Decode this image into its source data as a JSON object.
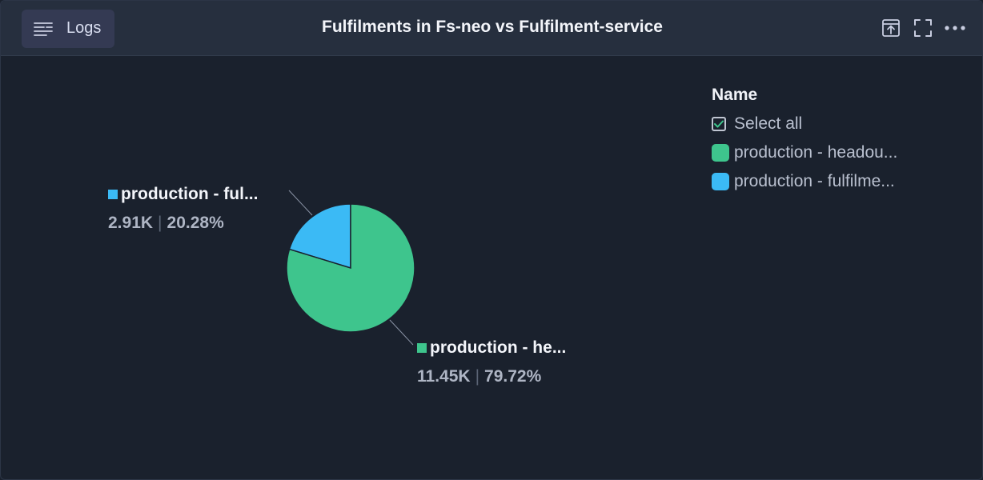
{
  "header": {
    "logs_label": "Logs",
    "title": "Fulfilments in Fs-neo vs Fulfilment-service",
    "icons": [
      "export-icon",
      "fullscreen-icon",
      "more-icon"
    ]
  },
  "legend": {
    "title": "Name",
    "select_all_label": "Select all",
    "items": [
      {
        "label": "production - headou...",
        "color": "#3ec58d"
      },
      {
        "label": "production - fulfilme...",
        "color": "#3bbaf5"
      }
    ]
  },
  "slice_labels": [
    {
      "name": "production - ful...",
      "value": "2.91K",
      "percent": "20.28%",
      "color": "#3bbaf5"
    },
    {
      "name": "production - he...",
      "value": "11.45K",
      "percent": "79.72%",
      "color": "#3ec58d"
    }
  ],
  "chart_data": {
    "type": "pie",
    "title": "Fulfilments in Fs-neo vs Fulfilment-service",
    "legend_title": "Name",
    "legend_position": "top-right",
    "slices": [
      {
        "name": "production - fulfilme...",
        "value": 2910,
        "percent": 20.28,
        "color": "#3bbaf5"
      },
      {
        "name": "production - headou...",
        "value": 11450,
        "percent": 79.72,
        "color": "#3ec58d"
      }
    ]
  }
}
